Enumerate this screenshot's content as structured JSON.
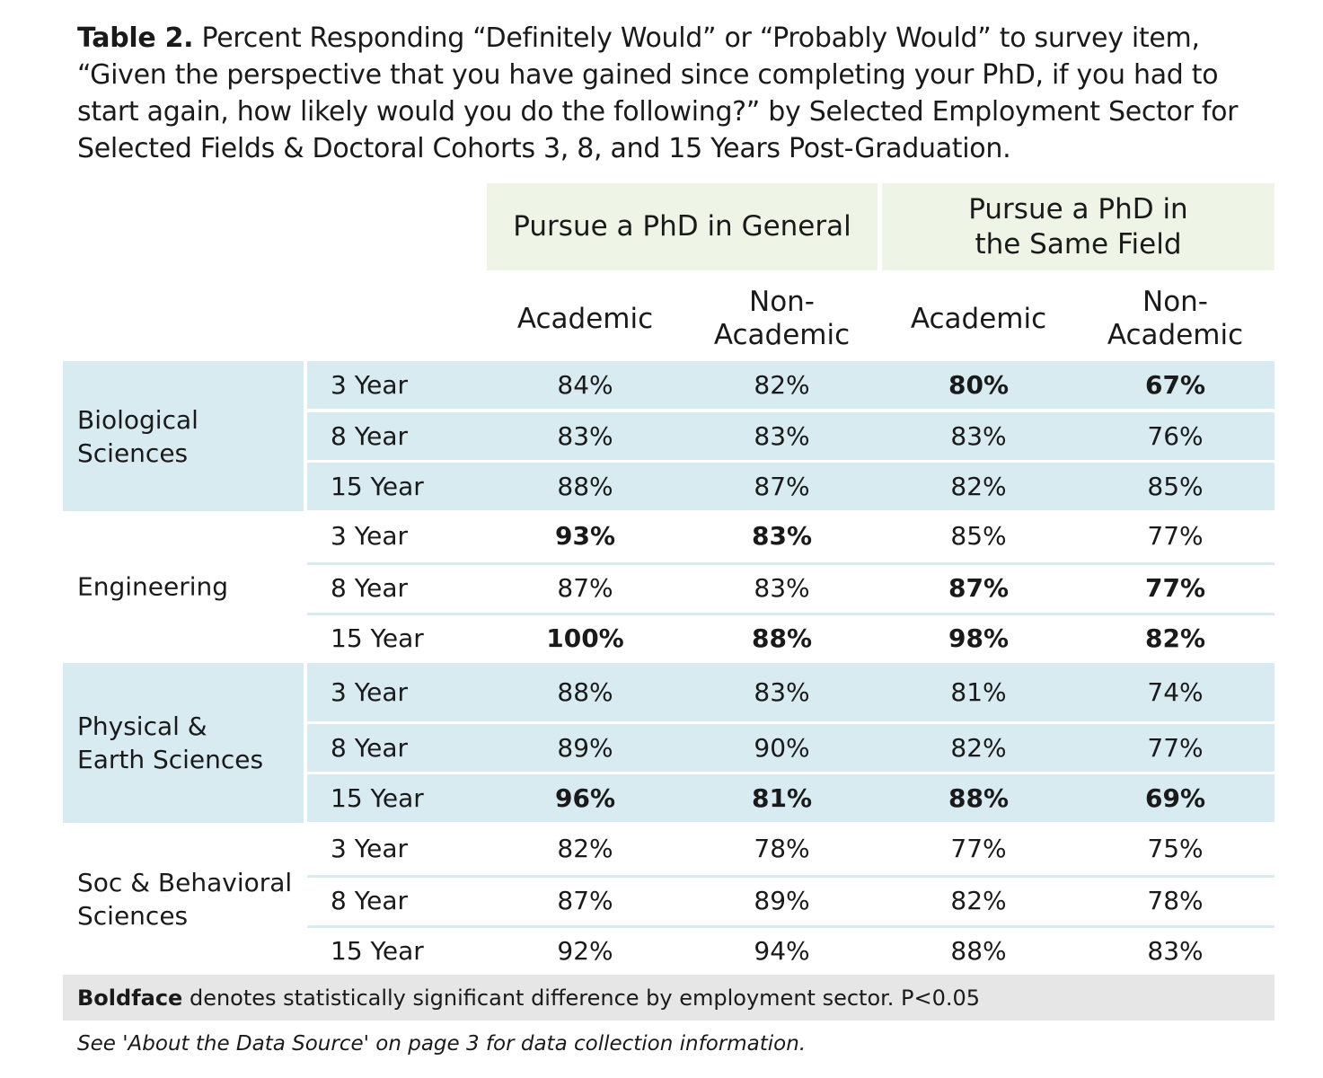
{
  "title": {
    "bold": "Table 2.",
    "text": "Percent Responding “Definitely Would” or “Probably Would” to survey item, “Given the perspective that you have gained since completing your PhD, if you had to start again, how likely would you do the following?” by Selected Employment Sector for Selected Fields & Doctoral Cohorts 3, 8, and 15 Years Post-Graduation."
  },
  "group_headers": [
    "Pursue a PhD in General",
    "Pursue a PhD in the Same Field"
  ],
  "column_headers": [
    "Academic",
    "Non-Academic",
    "Academic",
    "Non-Academic"
  ],
  "colors": {
    "field_band": "#d7ebf1",
    "group_header": "#eef4e6",
    "footer": "#e6e6e6"
  },
  "chart_data": {
    "type": "table",
    "columns": [
      "Pursue a PhD in General – Academic",
      "Pursue a PhD in General – Non-Academic",
      "Pursue a PhD in the Same Field – Academic",
      "Pursue a PhD in the Same Field – Non-Academic"
    ],
    "fields": [
      {
        "name": "Biological Sciences",
        "shaded": true,
        "rows": [
          {
            "cohort": "3 Year",
            "values": [
              "84%",
              "82%",
              "80%",
              "67%"
            ],
            "bold": [
              false,
              false,
              true,
              true
            ]
          },
          {
            "cohort": "8 Year",
            "values": [
              "83%",
              "83%",
              "83%",
              "76%"
            ],
            "bold": [
              false,
              false,
              false,
              false
            ]
          },
          {
            "cohort": "15 Year",
            "values": [
              "88%",
              "87%",
              "82%",
              "85%"
            ],
            "bold": [
              false,
              false,
              false,
              false
            ]
          }
        ]
      },
      {
        "name": "Engineering",
        "shaded": false,
        "rows": [
          {
            "cohort": "3 Year",
            "values": [
              "93%",
              "83%",
              "85%",
              "77%"
            ],
            "bold": [
              true,
              true,
              false,
              false
            ]
          },
          {
            "cohort": "8 Year",
            "values": [
              "87%",
              "83%",
              "87%",
              "77%"
            ],
            "bold": [
              false,
              false,
              true,
              true
            ]
          },
          {
            "cohort": "15 Year",
            "values": [
              "100%",
              "88%",
              "98%",
              "82%"
            ],
            "bold": [
              true,
              true,
              true,
              true
            ]
          }
        ]
      },
      {
        "name": "Physical & Earth Sciences",
        "shaded": true,
        "rows": [
          {
            "cohort": "3 Year",
            "values": [
              "88%",
              "83%",
              "81%",
              "74%"
            ],
            "bold": [
              false,
              false,
              false,
              false
            ]
          },
          {
            "cohort": "8 Year",
            "values": [
              "89%",
              "90%",
              "82%",
              "77%"
            ],
            "bold": [
              false,
              false,
              false,
              false
            ]
          },
          {
            "cohort": "15 Year",
            "values": [
              "96%",
              "81%",
              "88%",
              "69%"
            ],
            "bold": [
              true,
              true,
              true,
              true
            ]
          }
        ]
      },
      {
        "name": "Soc & Behavioral Sciences",
        "shaded": false,
        "rows": [
          {
            "cohort": "3 Year",
            "values": [
              "82%",
              "78%",
              "77%",
              "75%"
            ],
            "bold": [
              false,
              false,
              false,
              false
            ]
          },
          {
            "cohort": "8 Year",
            "values": [
              "87%",
              "89%",
              "82%",
              "78%"
            ],
            "bold": [
              false,
              false,
              false,
              false
            ]
          },
          {
            "cohort": "15 Year",
            "values": [
              "92%",
              "94%",
              "88%",
              "83%"
            ],
            "bold": [
              false,
              false,
              false,
              false
            ]
          }
        ]
      }
    ]
  },
  "footnote": {
    "bold": "Boldface",
    "text": " denotes statistically significant difference by employment sector. P<0.05"
  },
  "source_note": "See 'About the Data Source' on page 3 for data collection information."
}
